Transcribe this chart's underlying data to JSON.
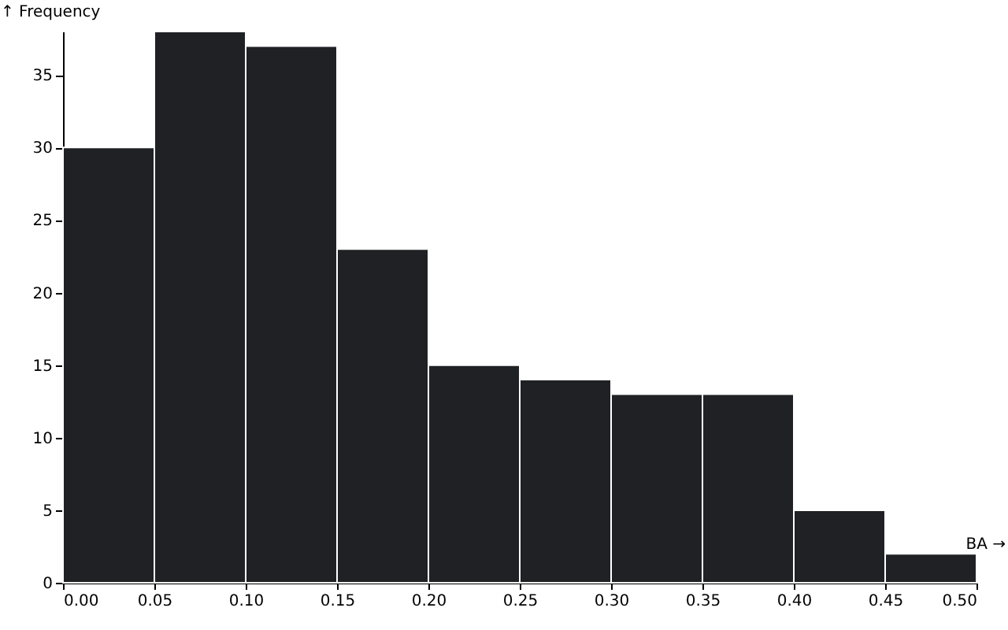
{
  "chart_data": {
    "type": "histogram",
    "xlabel": "BA →",
    "ylabel": "↑ Frequency",
    "bins": [
      0,
      0.05,
      0.1,
      0.15,
      0.2,
      0.25,
      0.3,
      0.35,
      0.4,
      0.45,
      0.5
    ],
    "values": [
      30,
      38,
      37,
      23,
      15,
      14,
      13,
      13,
      5,
      2
    ],
    "color": "#1f2125",
    "xlim": [
      0,
      0.5
    ],
    "xticks": [
      {
        "value": 0,
        "label": "0.00"
      },
      {
        "value": 0.05,
        "label": "0.05"
      },
      {
        "value": 0.1,
        "label": "0.10"
      },
      {
        "value": 0.15,
        "label": "0.15"
      },
      {
        "value": 0.2,
        "label": "0.20"
      },
      {
        "value": 0.25,
        "label": "0.25"
      },
      {
        "value": 0.3,
        "label": "0.30"
      },
      {
        "value": 0.35,
        "label": "0.35"
      },
      {
        "value": 0.4,
        "label": "0.40"
      },
      {
        "value": 0.45,
        "label": "0.45"
      },
      {
        "value": 0.5,
        "label": "0.50"
      }
    ],
    "ylim": [
      0,
      38
    ],
    "yticks": [
      0,
      5,
      10,
      15,
      20,
      25,
      30,
      35
    ],
    "grid": false
  }
}
